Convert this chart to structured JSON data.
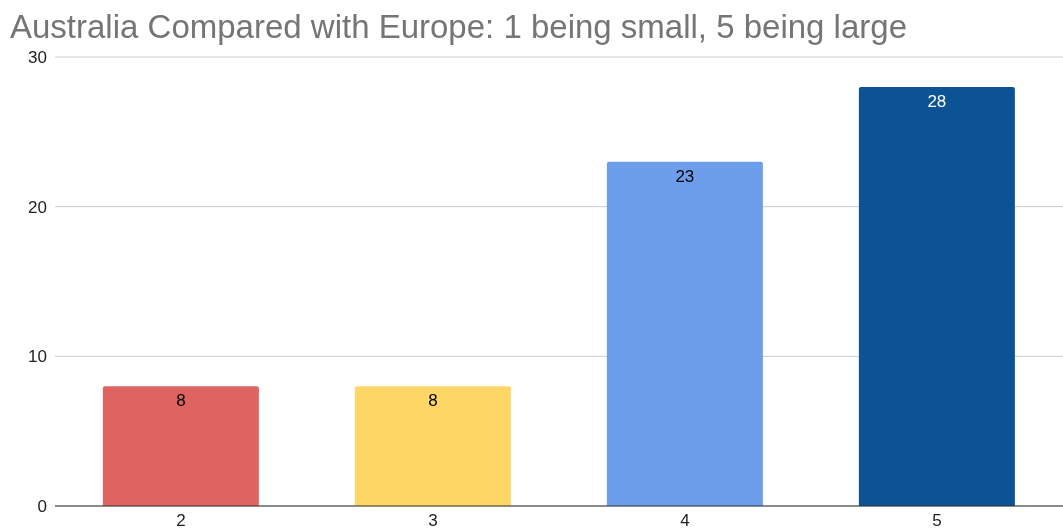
{
  "chart_data": {
    "type": "bar",
    "title": "Australia Compared with Europe: 1 being small, 5 being large",
    "categories": [
      "2",
      "3",
      "4",
      "5"
    ],
    "values": [
      8,
      8,
      23,
      28
    ],
    "colors": [
      "#dd6461",
      "#fdd666",
      "#6d9eeb",
      "#0b5394"
    ],
    "ylim": [
      0,
      30
    ],
    "yticks": [
      0,
      10,
      20,
      30
    ],
    "grid": "y",
    "data_labels": true
  }
}
